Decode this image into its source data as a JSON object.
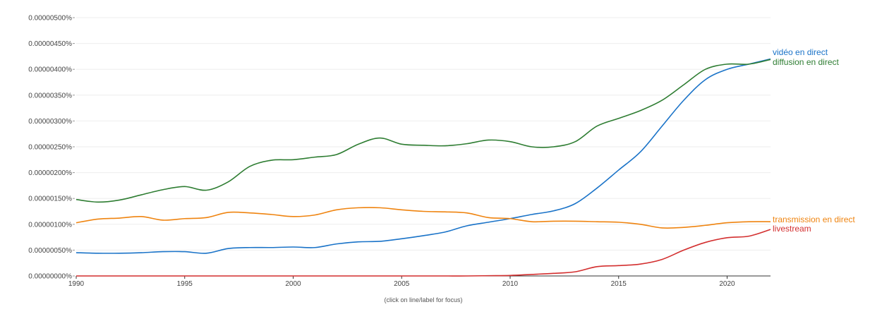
{
  "chart_data": {
    "type": "line",
    "xlim": [
      1990,
      2022
    ],
    "ylim": [
      0,
      5e-06
    ],
    "y_unit": "%",
    "grid": "horizontal",
    "legend": "right, at line ends",
    "x_ticks": [
      1990,
      1995,
      2000,
      2005,
      2010,
      2015,
      2020
    ],
    "x_tick_labels": [
      "1990",
      "1995",
      "2000",
      "2005",
      "2010",
      "2015",
      "2020"
    ],
    "y_ticks": [
      0,
      5e-07,
      1e-06,
      1.5e-06,
      2e-06,
      2.5e-06,
      3e-06,
      3.5e-06,
      4e-06,
      4.5e-06,
      5e-06
    ],
    "y_tick_labels": [
      "0.00000000%",
      "0.00000050%",
      "0.00000100%",
      "0.00000150%",
      "0.00000200%",
      "0.00000250%",
      "0.00000300%",
      "0.00000350%",
      "0.00000400%",
      "0.00000450%",
      "0.00000500%"
    ],
    "footnote": "(click on line/label for focus)",
    "x": [
      1990,
      1991,
      1992,
      1993,
      1994,
      1995,
      1996,
      1997,
      1998,
      1999,
      2000,
      2001,
      2002,
      2003,
      2004,
      2005,
      2006,
      2007,
      2008,
      2009,
      2010,
      2011,
      2012,
      2013,
      2014,
      2015,
      2016,
      2017,
      2018,
      2019,
      2020,
      2021,
      2022
    ],
    "series": [
      {
        "name": "vidéo en direct",
        "color": "#1a73c8",
        "values": [
          4.5e-07,
          4.4e-07,
          4.4e-07,
          4.5e-07,
          4.7e-07,
          4.7e-07,
          4.4e-07,
          5.3e-07,
          5.5e-07,
          5.5e-07,
          5.6e-07,
          5.5e-07,
          6.2e-07,
          6.6e-07,
          6.7e-07,
          7.2e-07,
          7.8e-07,
          8.5e-07,
          9.7e-07,
          1.04e-06,
          1.11e-06,
          1.19e-06,
          1.26e-06,
          1.4e-06,
          1.7e-06,
          2.05e-06,
          2.4e-06,
          2.9e-06,
          3.4e-06,
          3.8e-06,
          4e-06,
          4.1e-06,
          4.2e-06
        ]
      },
      {
        "name": "diffusion en direct",
        "color": "#2e7d32",
        "values": [
          1.48e-06,
          1.43e-06,
          1.47e-06,
          1.57e-06,
          1.67e-06,
          1.73e-06,
          1.66e-06,
          1.82e-06,
          2.12e-06,
          2.24e-06,
          2.25e-06,
          2.3e-06,
          2.35e-06,
          2.55e-06,
          2.67e-06,
          2.55e-06,
          2.53e-06,
          2.52e-06,
          2.56e-06,
          2.63e-06,
          2.6e-06,
          2.5e-06,
          2.5e-06,
          2.6e-06,
          2.9e-06,
          3.05e-06,
          3.2e-06,
          3.4e-06,
          3.7e-06,
          4e-06,
          4.1e-06,
          4.1e-06,
          4.19e-06
        ]
      },
      {
        "name": "transmission en direct",
        "color": "#ef8410",
        "values": [
          1.03e-06,
          1.1e-06,
          1.12e-06,
          1.15e-06,
          1.08e-06,
          1.11e-06,
          1.13e-06,
          1.23e-06,
          1.22e-06,
          1.19e-06,
          1.15e-06,
          1.18e-06,
          1.28e-06,
          1.32e-06,
          1.32e-06,
          1.28e-06,
          1.25e-06,
          1.24e-06,
          1.22e-06,
          1.13e-06,
          1.11e-06,
          1.05e-06,
          1.06e-06,
          1.06e-06,
          1.05e-06,
          1.04e-06,
          1e-06,
          9.3e-07,
          9.4e-07,
          9.8e-07,
          1.03e-06,
          1.05e-06,
          1.05e-06
        ]
      },
      {
        "name": "livestream",
        "color": "#d32f2f",
        "values": [
          0,
          0,
          0,
          0,
          0,
          0,
          0,
          0,
          0,
          0,
          0,
          0,
          0,
          0,
          0,
          0,
          0,
          0,
          0,
          5e-09,
          1e-08,
          3e-08,
          5e-08,
          8e-08,
          1.8e-07,
          2e-07,
          2.3e-07,
          3.2e-07,
          5e-07,
          6.5e-07,
          7.4e-07,
          7.7e-07,
          9e-07
        ]
      }
    ]
  }
}
